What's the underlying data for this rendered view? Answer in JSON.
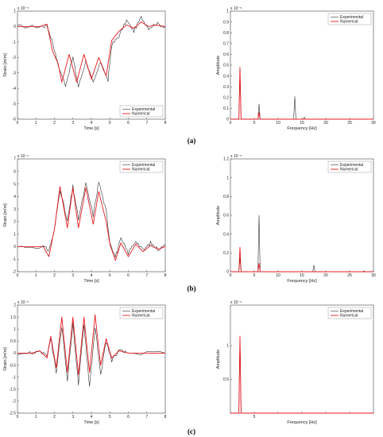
{
  "panel_labels": [
    "(a)",
    "(b)",
    "(c)"
  ],
  "colors": {
    "experimental": "#333333",
    "numerical": "#e8191f"
  },
  "chart_data": [
    {
      "id": "a-time",
      "type": "line",
      "xlabel": "Time [s]",
      "ylabel": "Strain [m/m]",
      "xlim": [
        0,
        8
      ],
      "ylim": [
        -6,
        1
      ],
      "xticks": [
        0,
        1,
        2,
        3,
        4,
        5,
        6,
        7,
        8
      ],
      "yticks": [
        -6,
        -5,
        -4,
        -3,
        -2,
        -1,
        0,
        1
      ],
      "exponent": "x 10⁻⁵",
      "legend": [
        "Experimental",
        "Numerical"
      ],
      "legend_position": "bottom-right",
      "series": [
        {
          "name": "Experimental",
          "points": [
            [
              0,
              0
            ],
            [
              1.2,
              0
            ],
            [
              1.6,
              0.05
            ],
            [
              1.9,
              -1
            ],
            [
              2.2,
              -2.5
            ],
            [
              2.6,
              -3.8
            ],
            [
              3,
              -2
            ],
            [
              3.3,
              -3.9
            ],
            [
              3.7,
              -2.2
            ],
            [
              4.1,
              -3.7
            ],
            [
              4.5,
              -2.3
            ],
            [
              4.9,
              -3.5
            ],
            [
              5.1,
              -1.2
            ],
            [
              5.5,
              -0.6
            ],
            [
              5.9,
              0.4
            ],
            [
              6.3,
              -0.3
            ],
            [
              6.7,
              0.6
            ],
            [
              7.1,
              -0.1
            ],
            [
              7.5,
              0.2
            ],
            [
              8,
              0
            ]
          ]
        },
        {
          "name": "Numerical",
          "points": [
            [
              0,
              0
            ],
            [
              1.2,
              0
            ],
            [
              1.6,
              0.15
            ],
            [
              1.9,
              -1.6
            ],
            [
              2.2,
              -2.4
            ],
            [
              2.4,
              -3.6
            ],
            [
              2.8,
              -1.8
            ],
            [
              3.2,
              -3.6
            ],
            [
              3.6,
              -1.8
            ],
            [
              4,
              -3.4
            ],
            [
              4.4,
              -2
            ],
            [
              4.8,
              -3.2
            ],
            [
              5.1,
              -0.9
            ],
            [
              5.5,
              -0.3
            ],
            [
              5.9,
              0.1
            ],
            [
              6.3,
              -0.1
            ],
            [
              6.7,
              0.3
            ],
            [
              7.1,
              0
            ],
            [
              7.5,
              0.1
            ],
            [
              8,
              0
            ]
          ]
        }
      ]
    },
    {
      "id": "a-freq",
      "type": "line",
      "xlabel": "Frequency [Hz]",
      "ylabel": "Amplitude",
      "xlim": [
        0,
        30
      ],
      "ylim": [
        0,
        1
      ],
      "xticks": [
        0,
        5,
        10,
        15,
        20,
        25,
        30
      ],
      "yticks": [
        0,
        0.1,
        0.2,
        0.3,
        0.4,
        0.5,
        0.6,
        0.7,
        0.8,
        0.9,
        1
      ],
      "exponent": "x 10⁻⁵",
      "legend": [
        "Experimental",
        "Numerical"
      ],
      "legend_position": "top-right",
      "series": [
        {
          "name": "Experimental",
          "peaks": [
            [
              2,
              0.42
            ],
            [
              6,
              0.14
            ],
            [
              13.5,
              0.21
            ],
            [
              15.5,
              0.02
            ]
          ]
        },
        {
          "name": "Numerical",
          "peaks": [
            [
              2,
              0.48
            ],
            [
              6,
              0.06
            ]
          ]
        }
      ]
    },
    {
      "id": "b-time",
      "type": "line",
      "xlabel": "Time [s]",
      "ylabel": "Strain [m/m]",
      "xlim": [
        0,
        8
      ],
      "ylim": [
        -2,
        7
      ],
      "xticks": [
        0,
        1,
        2,
        3,
        4,
        5,
        6,
        7,
        8
      ],
      "yticks": [
        -2,
        -1,
        0,
        1,
        2,
        3,
        4,
        5,
        6,
        7
      ],
      "exponent": "x 10⁻⁵",
      "legend": [
        "Experimental",
        "Numerical"
      ],
      "legend_position": "top-right",
      "series": [
        {
          "name": "Experimental",
          "points": [
            [
              0,
              0
            ],
            [
              1.4,
              0
            ],
            [
              1.7,
              -0.3
            ],
            [
              2,
              1.3
            ],
            [
              2.3,
              4.6
            ],
            [
              2.7,
              2
            ],
            [
              3,
              4.8
            ],
            [
              3.3,
              2.2
            ],
            [
              3.7,
              5
            ],
            [
              4.1,
              2.5
            ],
            [
              4.4,
              5.2
            ],
            [
              4.8,
              2.8
            ],
            [
              5,
              0.4
            ],
            [
              5.3,
              -0.8
            ],
            [
              5.6,
              0.6
            ],
            [
              6,
              -0.5
            ],
            [
              6.4,
              0.5
            ],
            [
              6.8,
              -0.3
            ],
            [
              7.2,
              0.3
            ],
            [
              7.6,
              -0.2
            ],
            [
              8,
              0.1
            ]
          ]
        },
        {
          "name": "Numerical",
          "points": [
            [
              0,
              0
            ],
            [
              1.4,
              0
            ],
            [
              1.7,
              -0.8
            ],
            [
              2,
              1.4
            ],
            [
              2.3,
              4.8
            ],
            [
              2.7,
              1.5
            ],
            [
              3,
              4.7
            ],
            [
              3.3,
              1.5
            ],
            [
              3.7,
              4.7
            ],
            [
              4.1,
              1.8
            ],
            [
              4.4,
              4.4
            ],
            [
              4.8,
              2
            ],
            [
              5,
              0.2
            ],
            [
              5.3,
              -1.1
            ],
            [
              5.6,
              0.3
            ],
            [
              6,
              -0.8
            ],
            [
              6.4,
              0.2
            ],
            [
              6.8,
              -0.4
            ],
            [
              7.2,
              0.1
            ],
            [
              7.6,
              -0.2
            ],
            [
              8,
              0
            ]
          ]
        }
      ]
    },
    {
      "id": "b-freq",
      "type": "line",
      "xlabel": "Frequency [Hz]",
      "ylabel": "Amplitude",
      "xlim": [
        0,
        30
      ],
      "ylim": [
        0,
        1.2
      ],
      "xticks": [
        0,
        5,
        10,
        15,
        20,
        25,
        30
      ],
      "yticks": [
        0,
        0.2,
        0.4,
        0.6,
        0.8,
        1,
        1.2
      ],
      "exponent": "x 10⁻⁵",
      "legend": [
        "Experimental",
        "Numerical"
      ],
      "legend_position": "top-right",
      "series": [
        {
          "name": "Experimental",
          "peaks": [
            [
              2,
              0.15
            ],
            [
              6,
              0.6
            ],
            [
              17.5,
              0.07
            ],
            [
              28,
              0.01
            ]
          ]
        },
        {
          "name": "Numerical",
          "peaks": [
            [
              2,
              0.26
            ],
            [
              6,
              0.09
            ]
          ]
        }
      ]
    },
    {
      "id": "c-time",
      "type": "line",
      "xlabel": "Time [s]",
      "ylabel": "Strain [m/m]",
      "xlim": [
        0,
        8
      ],
      "ylim": [
        -2.5,
        2
      ],
      "xticks": [
        0,
        1,
        2,
        3,
        4,
        5,
        6,
        7,
        8
      ],
      "yticks": [
        -2.5,
        -2,
        -1.5,
        -1,
        -0.5,
        0,
        0.5,
        1,
        1.5,
        2
      ],
      "exponent": "x 10⁻⁵",
      "legend": [
        "Experimental",
        "Numerical"
      ],
      "legend_position": "top-right",
      "series": [
        {
          "name": "Experimental",
          "points": [
            [
              0,
              0
            ],
            [
              0.8,
              0
            ],
            [
              1.2,
              0.1
            ],
            [
              1.6,
              -0.1
            ],
            [
              1.8,
              0.6
            ],
            [
              2.1,
              -0.8
            ],
            [
              2.4,
              1.1
            ],
            [
              2.7,
              -1.1
            ],
            [
              3,
              1.2
            ],
            [
              3.3,
              -1.3
            ],
            [
              3.6,
              1.2
            ],
            [
              3.9,
              -1.4
            ],
            [
              4.2,
              1.1
            ],
            [
              4.5,
              -0.9
            ],
            [
              4.8,
              0.5
            ],
            [
              5.1,
              -0.3
            ],
            [
              5.5,
              0.1
            ],
            [
              6,
              0
            ],
            [
              8,
              0
            ]
          ]
        },
        {
          "name": "Numerical",
          "points": [
            [
              0,
              0
            ],
            [
              0.8,
              0
            ],
            [
              1.2,
              0.1
            ],
            [
              1.6,
              -0.2
            ],
            [
              1.8,
              0.7
            ],
            [
              2.1,
              -0.6
            ],
            [
              2.4,
              1.5
            ],
            [
              2.7,
              -0.8
            ],
            [
              3,
              1.5
            ],
            [
              3.3,
              -0.9
            ],
            [
              3.6,
              1.5
            ],
            [
              3.9,
              -0.8
            ],
            [
              4.2,
              1.6
            ],
            [
              4.5,
              -0.5
            ],
            [
              4.8,
              0.6
            ],
            [
              5.1,
              -0.2
            ],
            [
              5.5,
              0.1
            ],
            [
              6,
              0
            ],
            [
              8,
              0
            ]
          ]
        }
      ]
    },
    {
      "id": "c-freq",
      "type": "line",
      "xlabel": "Frequency [Hz]",
      "ylabel": "Amplitude",
      "xlim": [
        0,
        30
      ],
      "ylim": [
        0,
        1.6
      ],
      "xticks": [
        0,
        5,
        10,
        15,
        20,
        25,
        30
      ],
      "xtick_labels": [
        "",
        "5",
        "",
        "",
        "",
        "",
        ""
      ],
      "yticks": [
        0.5,
        1
      ],
      "exponent": "x 10⁻⁵",
      "legend": [
        "Experimental",
        "Numerical"
      ],
      "legend_position": "top-right",
      "series": [
        {
          "name": "Experimental",
          "peaks": [
            [
              2,
              1.12
            ]
          ]
        },
        {
          "name": "Numerical",
          "peaks": [
            [
              2,
              1.14
            ]
          ]
        }
      ]
    }
  ]
}
